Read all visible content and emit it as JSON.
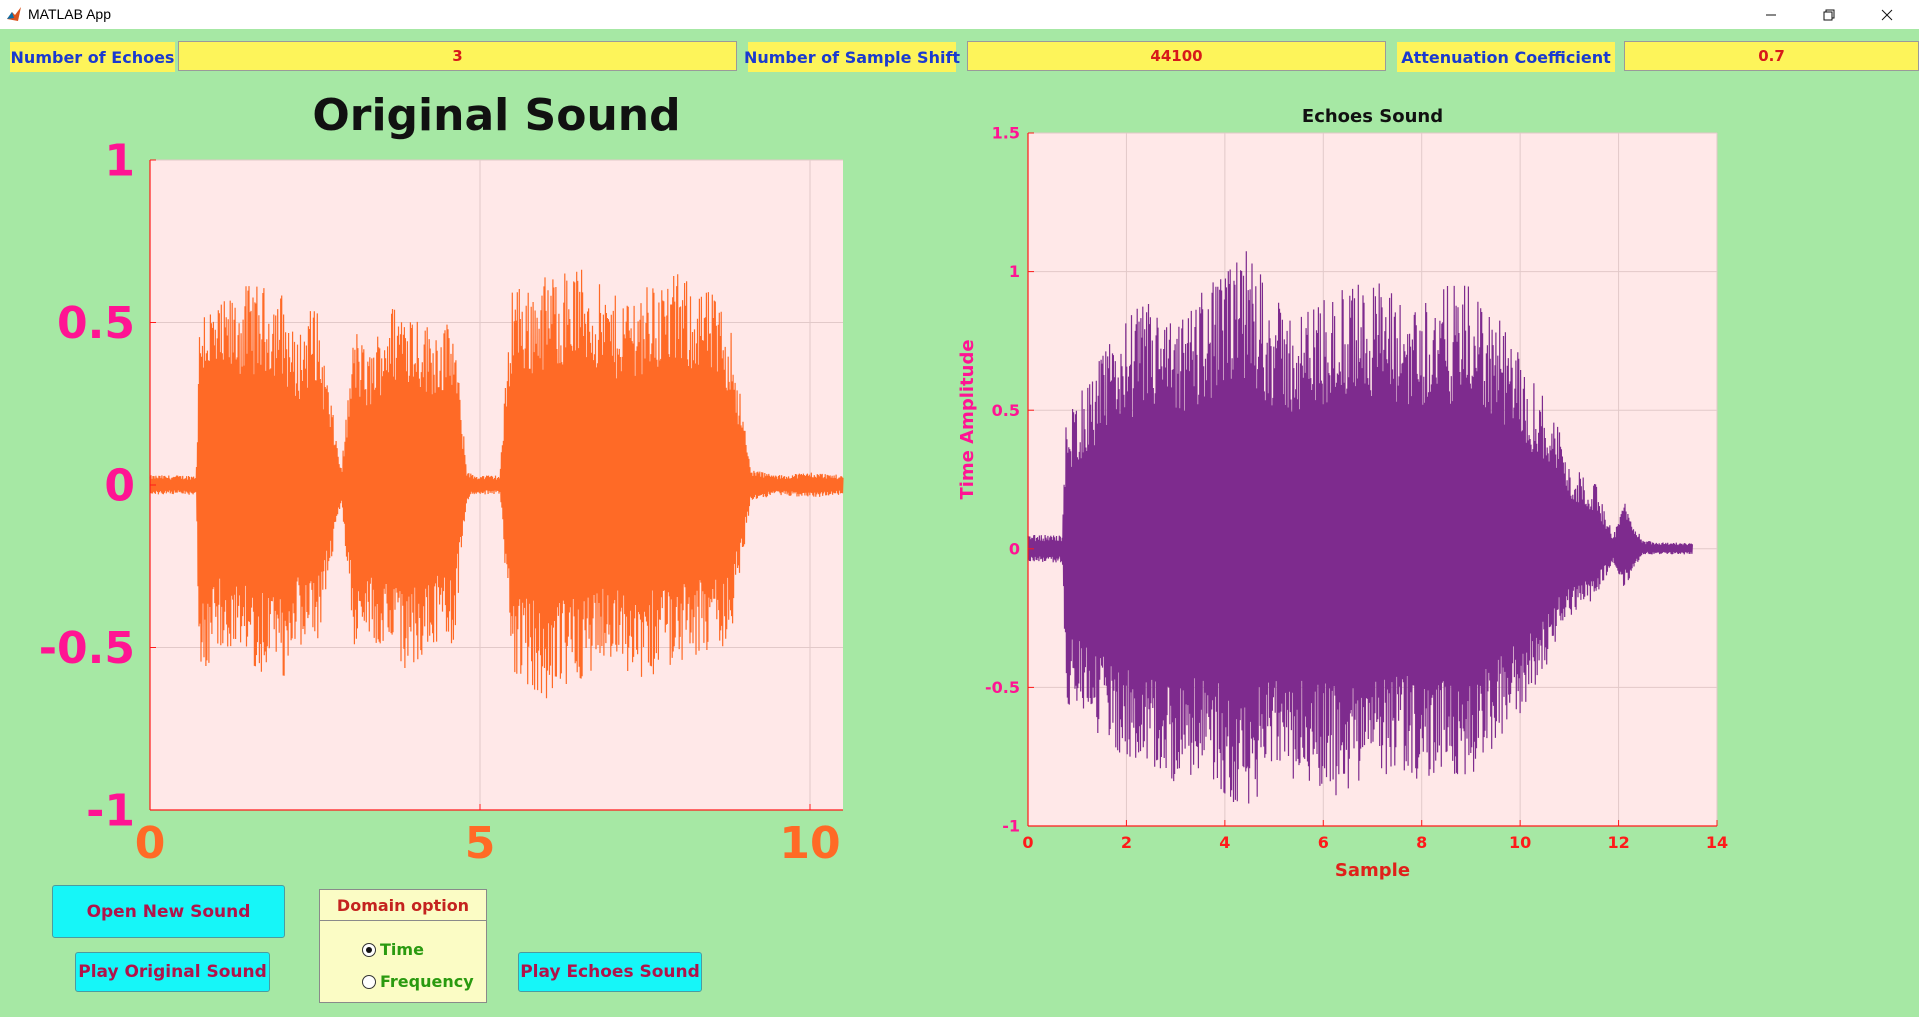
{
  "window": {
    "title": "MATLAB App"
  },
  "fields": {
    "echoes": {
      "label": "Number of Echoes",
      "value": "3"
    },
    "shift": {
      "label": "Number of Sample Shift",
      "value": "44100"
    },
    "attenuation": {
      "label": "Attenuation Coefficient",
      "value": "0.7"
    }
  },
  "buttons": {
    "open": "Open New Sound",
    "play_original": "Play Original Sound",
    "play_echoes": "Play Echoes Sound"
  },
  "domain_option": {
    "title": "Domain option",
    "options": [
      {
        "label": "Time",
        "selected": true
      },
      {
        "label": "Frequency",
        "selected": false
      }
    ]
  },
  "colors": {
    "background": "#a6e8a4",
    "plot_bg": "#ffe8e8",
    "original_wave": "#ff6a26",
    "echo_wave": "#7e2b8e",
    "axis_tick_magenta": "#ff1493",
    "axis_tick_red": "#ff1a1a",
    "field_yellow": "#fdf45a",
    "button_cyan": "#16f6f8"
  },
  "chart_data": [
    {
      "type": "line",
      "title": "Original Sound",
      "xlabel": "",
      "ylabel": "",
      "xlim": [
        0,
        10.5
      ],
      "ylim": [
        -1,
        1
      ],
      "xticks": [
        0,
        5,
        10
      ],
      "yticks": [
        -1,
        -0.5,
        0,
        0.5,
        1
      ],
      "ytick_labels": [
        "-1",
        "-0.5",
        "0",
        "0.5",
        "1"
      ],
      "xtick_labels": [
        "0",
        "5",
        "10"
      ],
      "grid": true,
      "envelope": {
        "x": [
          0,
          0.7,
          0.75,
          0.8,
          1.0,
          1.5,
          2.0,
          2.2,
          2.5,
          2.9,
          3.1,
          3.3,
          3.6,
          3.9,
          4.2,
          4.6,
          4.8,
          4.9,
          5.3,
          5.5,
          5.7,
          6.0,
          6.5,
          7.0,
          7.5,
          8.0,
          8.5,
          8.8,
          9.1,
          9.5,
          10.0,
          10.5
        ],
        "upper": [
          0.03,
          0.03,
          0.5,
          0.6,
          0.55,
          0.62,
          0.6,
          0.45,
          0.58,
          0.05,
          0.5,
          0.4,
          0.55,
          0.58,
          0.5,
          0.5,
          0.05,
          0.03,
          0.03,
          0.68,
          0.6,
          0.65,
          0.68,
          0.58,
          0.62,
          0.65,
          0.6,
          0.5,
          0.05,
          0.03,
          0.04,
          0.03
        ],
        "lower": [
          -0.03,
          -0.03,
          -0.55,
          -0.6,
          -0.5,
          -0.55,
          -0.62,
          -0.48,
          -0.55,
          -0.05,
          -0.5,
          -0.45,
          -0.55,
          -0.6,
          -0.5,
          -0.5,
          -0.05,
          -0.03,
          -0.03,
          -0.58,
          -0.62,
          -0.68,
          -0.6,
          -0.55,
          -0.6,
          -0.55,
          -0.52,
          -0.5,
          -0.05,
          -0.03,
          -0.04,
          -0.03
        ]
      }
    },
    {
      "type": "line",
      "title": "Echoes Sound",
      "xlabel": "Sample",
      "ylabel": "Time Amplitude",
      "xlim": [
        0,
        14
      ],
      "ylim": [
        -1,
        1.5
      ],
      "xticks": [
        0,
        2,
        4,
        6,
        8,
        10,
        12,
        14
      ],
      "yticks": [
        -1,
        -0.5,
        0,
        0.5,
        1,
        1.5
      ],
      "ytick_labels": [
        "-1",
        "-0.5",
        "0",
        "0.5",
        "1",
        "1.5"
      ],
      "xtick_labels": [
        "0",
        "2",
        "4",
        "6",
        "8",
        "10",
        "12",
        "14"
      ],
      "grid": true,
      "envelope": {
        "x": [
          0,
          0.7,
          0.78,
          1.0,
          1.5,
          2.0,
          2.5,
          3.0,
          3.5,
          4.0,
          4.5,
          5.0,
          5.5,
          6.0,
          6.5,
          7.0,
          7.5,
          8.0,
          8.5,
          9.0,
          9.5,
          10.0,
          10.5,
          10.8,
          11.0,
          11.5,
          11.9,
          12.1,
          12.3,
          12.5,
          13.5
        ],
        "upper": [
          0.05,
          0.05,
          0.5,
          0.55,
          0.7,
          0.85,
          0.9,
          0.8,
          0.95,
          1.0,
          1.1,
          0.9,
          0.85,
          0.92,
          0.95,
          1.0,
          0.9,
          0.92,
          0.95,
          0.95,
          0.85,
          0.7,
          0.55,
          0.45,
          0.3,
          0.25,
          0.05,
          0.18,
          0.1,
          0.03,
          0.02
        ],
        "lower": [
          -0.05,
          -0.05,
          -0.6,
          -0.55,
          -0.7,
          -0.75,
          -0.8,
          -0.85,
          -0.82,
          -0.9,
          -0.95,
          -0.8,
          -0.85,
          -0.88,
          -0.9,
          -0.85,
          -0.82,
          -0.85,
          -0.8,
          -0.85,
          -0.7,
          -0.6,
          -0.45,
          -0.3,
          -0.25,
          -0.18,
          -0.05,
          -0.15,
          -0.08,
          -0.02,
          -0.02
        ]
      }
    }
  ]
}
